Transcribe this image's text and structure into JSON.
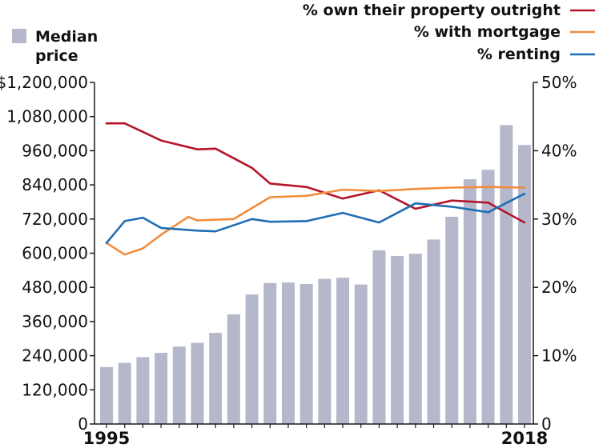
{
  "chart_data": {
    "type": "bar+line",
    "title": "",
    "bar_series": {
      "name": "Median price",
      "legend_lines": [
        "Median",
        "price"
      ],
      "color": "#b5b8cb",
      "axis": "left",
      "values": [
        200000,
        215000,
        235000,
        250000,
        272000,
        285000,
        320000,
        385000,
        455000,
        495000,
        497000,
        492000,
        510000,
        514000,
        490000,
        610000,
        590000,
        598000,
        648000,
        728000,
        860000,
        893000,
        1050000,
        980000
      ]
    },
    "years": [
      1995,
      1996,
      1997,
      1998,
      1999,
      2000,
      2001,
      2002,
      2003,
      2004,
      2005,
      2006,
      2007,
      2008,
      2009,
      2010,
      2011,
      2012,
      2013,
      2014,
      2015,
      2016,
      2017,
      2018
    ],
    "x_tick_labels": [
      {
        "label": "1995",
        "year": 1995
      },
      {
        "label": "2018",
        "year": 2018
      }
    ],
    "line_series": [
      {
        "name": "% own their property outright",
        "color": "#b5152b",
        "axis": "right",
        "points": [
          [
            1995,
            44
          ],
          [
            1996,
            44
          ],
          [
            1998,
            41.5
          ],
          [
            2000,
            40.2
          ],
          [
            2001,
            40.3
          ],
          [
            2003,
            37.5
          ],
          [
            2004,
            35.2
          ],
          [
            2006,
            34.7
          ],
          [
            2008,
            33
          ],
          [
            2010,
            34.2
          ],
          [
            2012,
            31.5
          ],
          [
            2014,
            32.7
          ],
          [
            2016,
            32.4
          ],
          [
            2018,
            29.5
          ]
        ]
      },
      {
        "name": "% with mortgage",
        "color": "#f08c3c",
        "axis": "right",
        "points": [
          [
            1995,
            26.5
          ],
          [
            1996,
            24.8
          ],
          [
            1997,
            25.7
          ],
          [
            1998,
            27.7
          ],
          [
            1999.5,
            30.3
          ],
          [
            2000,
            29.8
          ],
          [
            2002,
            30
          ],
          [
            2004,
            33.2
          ],
          [
            2006,
            33.4
          ],
          [
            2008,
            34.3
          ],
          [
            2010,
            34.1
          ],
          [
            2012,
            34.4
          ],
          [
            2014,
            34.6
          ],
          [
            2016,
            34.7
          ],
          [
            2018,
            34.6
          ]
        ]
      },
      {
        "name": "% renting",
        "color": "#1f6eb4",
        "axis": "right",
        "points": [
          [
            1995,
            26.5
          ],
          [
            1996,
            29.7
          ],
          [
            1997,
            30.2
          ],
          [
            1998,
            28.7
          ],
          [
            2000,
            28.3
          ],
          [
            2001,
            28.2
          ],
          [
            2003,
            30
          ],
          [
            2004,
            29.6
          ],
          [
            2006,
            29.7
          ],
          [
            2008,
            30.9
          ],
          [
            2010,
            29.5
          ],
          [
            2012,
            32.3
          ],
          [
            2014,
            31.8
          ],
          [
            2016,
            31
          ],
          [
            2018,
            33.7
          ]
        ]
      }
    ],
    "y_left": {
      "min": 0,
      "max": 1200000,
      "ticks": [
        {
          "value": 0,
          "label": "0"
        },
        {
          "value": 120000,
          "label": "120,000"
        },
        {
          "value": 240000,
          "label": "240,000"
        },
        {
          "value": 360000,
          "label": "360,000"
        },
        {
          "value": 480000,
          "label": "480,000"
        },
        {
          "value": 600000,
          "label": "600,000"
        },
        {
          "value": 720000,
          "label": "720,000"
        },
        {
          "value": 840000,
          "label": "840,000"
        },
        {
          "value": 960000,
          "label": "960,000"
        },
        {
          "value": 1080000,
          "label": "1,080,000"
        },
        {
          "value": 1200000,
          "label": "$1,200,000"
        }
      ]
    },
    "y_right": {
      "min": 0,
      "max": 50,
      "ticks": [
        {
          "value": 0,
          "label": "0"
        },
        {
          "value": 10,
          "label": "10%"
        },
        {
          "value": 20,
          "label": "20%"
        },
        {
          "value": 30,
          "label": "30%"
        },
        {
          "value": 40,
          "label": "40%"
        },
        {
          "value": 50,
          "label": "50%"
        }
      ]
    },
    "grid": false,
    "legend_position": "top"
  }
}
